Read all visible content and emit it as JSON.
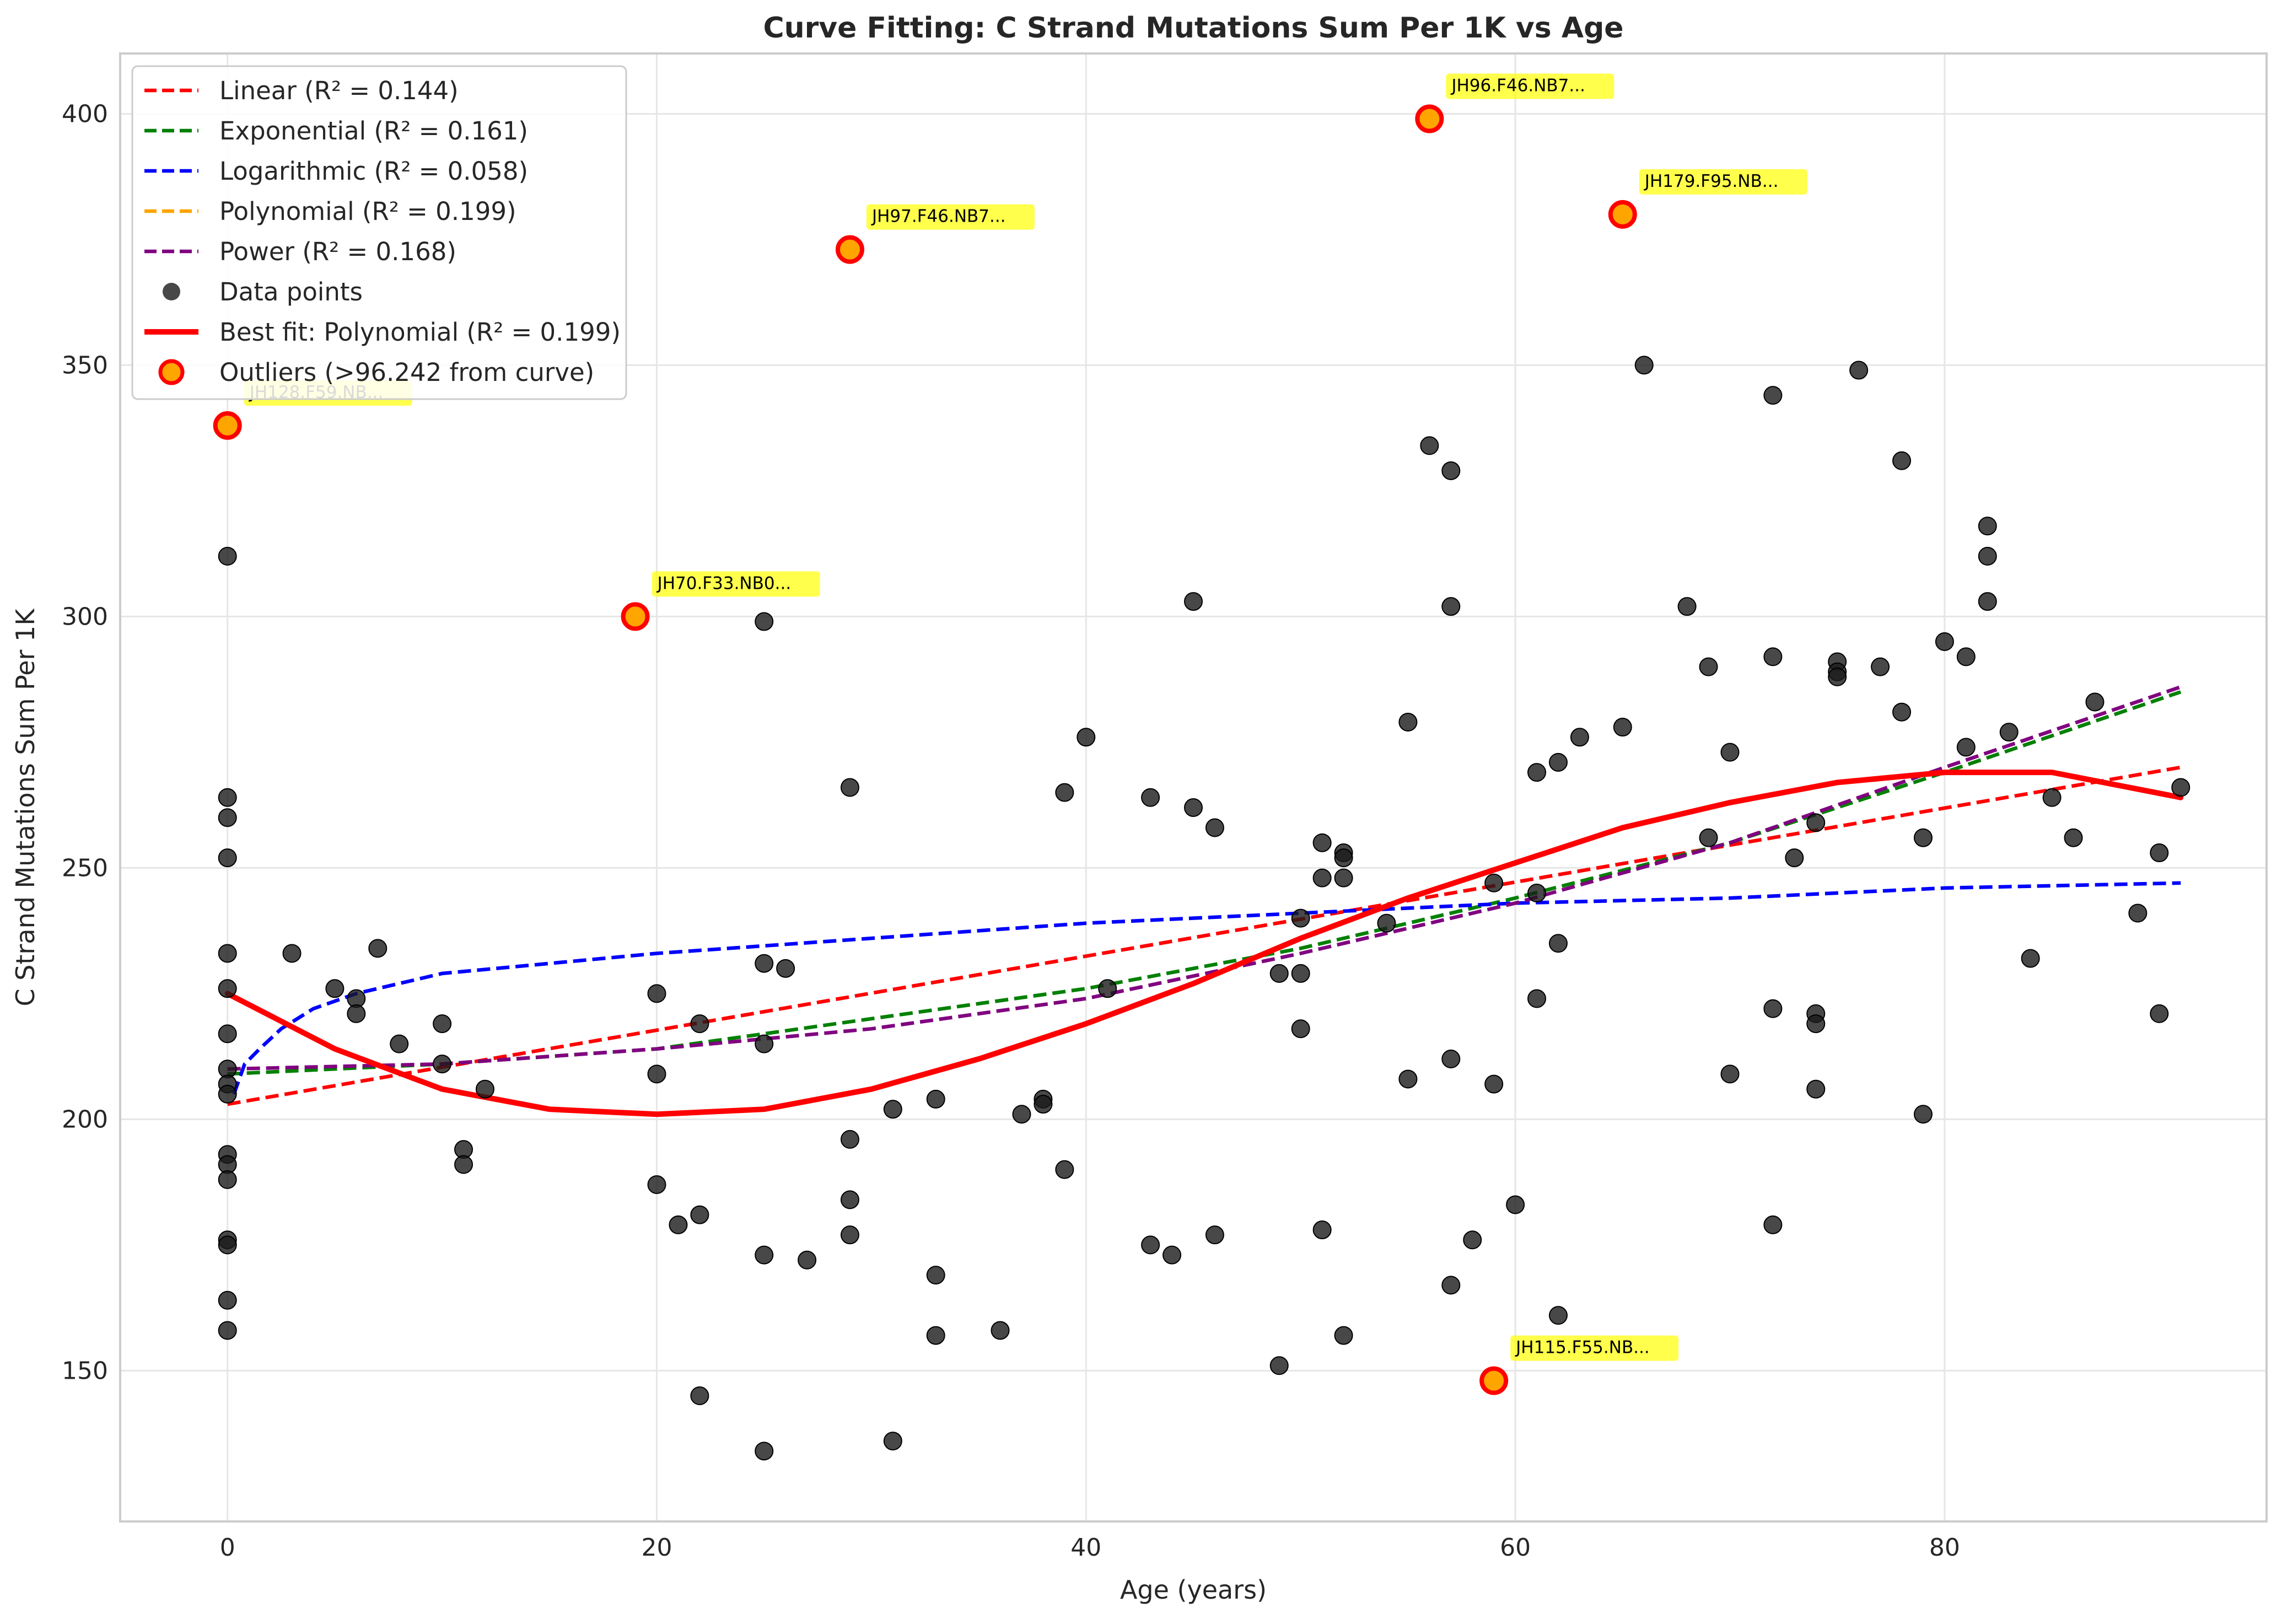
{
  "chart_data": {
    "type": "scatter",
    "title": "Curve Fitting: C Strand Mutations Sum Per 1K vs Age",
    "xlabel": "Age (years)",
    "ylabel": "C Strand Mutations Sum Per 1K",
    "xlim": [
      -5,
      95
    ],
    "ylim": [
      120,
      412
    ],
    "xticks": [
      0,
      20,
      40,
      60,
      80
    ],
    "yticks": [
      150,
      200,
      250,
      300,
      350,
      400
    ],
    "grid": true,
    "legend_position": "upper-left",
    "fits": [
      {
        "name": "Linear (R² = 0.144)",
        "color": "#ff0000",
        "style": "dashed",
        "points": [
          [
            0,
            203
          ],
          [
            91,
            270
          ]
        ]
      },
      {
        "name": "Exponential (R² = 0.161)",
        "color": "#008000",
        "style": "dashed",
        "points": [
          [
            0,
            209
          ],
          [
            10,
            211
          ],
          [
            20,
            214
          ],
          [
            30,
            220
          ],
          [
            40,
            226
          ],
          [
            50,
            234
          ],
          [
            60,
            244
          ],
          [
            70,
            255
          ],
          [
            80,
            269
          ],
          [
            91,
            285
          ]
        ]
      },
      {
        "name": "Logarithmic (R² = 0.058)",
        "color": "#0000ff",
        "style": "dashed",
        "points": [
          [
            0.3,
            205
          ],
          [
            0.8,
            211
          ],
          [
            1.5,
            214
          ],
          [
            2.5,
            218
          ],
          [
            4,
            222
          ],
          [
            6,
            225
          ],
          [
            10,
            229
          ],
          [
            15,
            231
          ],
          [
            20,
            233
          ],
          [
            30,
            236
          ],
          [
            40,
            239
          ],
          [
            50,
            241
          ],
          [
            60,
            243
          ],
          [
            70,
            244
          ],
          [
            80,
            246
          ],
          [
            91,
            247
          ]
        ]
      },
      {
        "name": "Polynomial (R² = 0.199)",
        "color": "#ffa500",
        "style": "dashed",
        "points": [
          [
            0,
            225
          ],
          [
            5,
            214
          ],
          [
            10,
            206
          ],
          [
            15,
            202
          ],
          [
            20,
            201
          ],
          [
            25,
            202
          ],
          [
            30,
            206
          ],
          [
            35,
            212
          ],
          [
            40,
            219
          ],
          [
            45,
            227
          ],
          [
            50,
            236
          ],
          [
            55,
            244
          ],
          [
            60,
            251
          ],
          [
            65,
            258
          ],
          [
            70,
            263
          ],
          [
            75,
            267
          ],
          [
            80,
            269
          ],
          [
            85,
            269
          ],
          [
            91,
            264
          ]
        ]
      },
      {
        "name": "Power (R² = 0.168)",
        "color": "#800080",
        "style": "dashed",
        "points": [
          [
            0,
            210
          ],
          [
            10,
            211
          ],
          [
            20,
            214
          ],
          [
            30,
            218
          ],
          [
            40,
            224
          ],
          [
            50,
            233
          ],
          [
            60,
            243
          ],
          [
            70,
            255
          ],
          [
            80,
            270
          ],
          [
            91,
            286
          ]
        ]
      },
      {
        "name": "Best fit: Polynomial (R² = 0.199)",
        "color": "#ff0000",
        "style": "solid",
        "points": [
          [
            0,
            225
          ],
          [
            5,
            214
          ],
          [
            10,
            206
          ],
          [
            15,
            202
          ],
          [
            20,
            201
          ],
          [
            25,
            202
          ],
          [
            30,
            206
          ],
          [
            35,
            212
          ],
          [
            40,
            219
          ],
          [
            45,
            227
          ],
          [
            50,
            236
          ],
          [
            55,
            244
          ],
          [
            60,
            251
          ],
          [
            65,
            258
          ],
          [
            70,
            263
          ],
          [
            75,
            267
          ],
          [
            80,
            269
          ],
          [
            85,
            269
          ],
          [
            91,
            264
          ]
        ]
      }
    ],
    "data_points_label": "Data points",
    "outliers_label": "Outliers (>96.242 from curve)",
    "points": [
      [
        0,
        312
      ],
      [
        0,
        264
      ],
      [
        0,
        260
      ],
      [
        0,
        252
      ],
      [
        0,
        233
      ],
      [
        0,
        226
      ],
      [
        0,
        217
      ],
      [
        0,
        210
      ],
      [
        0,
        207
      ],
      [
        0,
        205
      ],
      [
        0,
        193
      ],
      [
        0,
        191
      ],
      [
        0,
        188
      ],
      [
        0,
        176
      ],
      [
        0,
        175
      ],
      [
        0,
        164
      ],
      [
        0,
        158
      ],
      [
        3,
        233
      ],
      [
        5,
        226
      ],
      [
        6,
        224
      ],
      [
        6,
        221
      ],
      [
        7,
        234
      ],
      [
        8,
        215
      ],
      [
        10,
        219
      ],
      [
        10,
        211
      ],
      [
        11,
        194
      ],
      [
        11,
        191
      ],
      [
        12,
        206
      ],
      [
        20,
        225
      ],
      [
        20,
        209
      ],
      [
        20,
        187
      ],
      [
        21,
        179
      ],
      [
        22,
        219
      ],
      [
        22,
        181
      ],
      [
        22,
        145
      ],
      [
        25,
        299
      ],
      [
        25,
        231
      ],
      [
        25,
        215
      ],
      [
        25,
        173
      ],
      [
        25,
        134
      ],
      [
        26,
        230
      ],
      [
        27,
        172
      ],
      [
        29,
        266
      ],
      [
        29,
        196
      ],
      [
        29,
        184
      ],
      [
        29,
        177
      ],
      [
        31,
        202
      ],
      [
        31,
        136
      ],
      [
        33,
        204
      ],
      [
        33,
        169
      ],
      [
        33,
        157
      ],
      [
        36,
        158
      ],
      [
        37,
        201
      ],
      [
        38,
        204
      ],
      [
        38,
        203
      ],
      [
        39,
        265
      ],
      [
        39,
        190
      ],
      [
        40,
        276
      ],
      [
        41,
        226
      ],
      [
        43,
        264
      ],
      [
        43,
        175
      ],
      [
        44,
        173
      ],
      [
        45,
        303
      ],
      [
        45,
        262
      ],
      [
        46,
        258
      ],
      [
        46,
        177
      ],
      [
        49,
        229
      ],
      [
        49,
        151
      ],
      [
        50,
        240
      ],
      [
        50,
        229
      ],
      [
        50,
        218
      ],
      [
        51,
        255
      ],
      [
        51,
        248
      ],
      [
        51,
        178
      ],
      [
        52,
        253
      ],
      [
        52,
        252
      ],
      [
        52,
        248
      ],
      [
        52,
        157
      ],
      [
        54,
        239
      ],
      [
        55,
        279
      ],
      [
        55,
        208
      ],
      [
        56,
        334
      ],
      [
        57,
        329
      ],
      [
        57,
        302
      ],
      [
        57,
        212
      ],
      [
        57,
        167
      ],
      [
        58,
        176
      ],
      [
        59,
        247
      ],
      [
        59,
        207
      ],
      [
        60,
        183
      ],
      [
        61,
        269
      ],
      [
        61,
        245
      ],
      [
        61,
        224
      ],
      [
        62,
        271
      ],
      [
        62,
        235
      ],
      [
        62,
        161
      ],
      [
        63,
        276
      ],
      [
        65,
        278
      ],
      [
        66,
        350
      ],
      [
        68,
        302
      ],
      [
        69,
        290
      ],
      [
        69,
        256
      ],
      [
        70,
        273
      ],
      [
        70,
        209
      ],
      [
        72,
        344
      ],
      [
        72,
        292
      ],
      [
        72,
        222
      ],
      [
        72,
        179
      ],
      [
        73,
        252
      ],
      [
        74,
        259
      ],
      [
        74,
        221
      ],
      [
        74,
        219
      ],
      [
        74,
        206
      ],
      [
        75,
        291
      ],
      [
        75,
        289
      ],
      [
        75,
        288
      ],
      [
        76,
        349
      ],
      [
        77,
        290
      ],
      [
        78,
        331
      ],
      [
        78,
        281
      ],
      [
        79,
        256
      ],
      [
        79,
        201
      ],
      [
        80,
        295
      ],
      [
        81,
        292
      ],
      [
        81,
        274
      ],
      [
        82,
        318
      ],
      [
        82,
        312
      ],
      [
        82,
        303
      ],
      [
        83,
        277
      ],
      [
        84,
        232
      ],
      [
        85,
        264
      ],
      [
        86,
        256
      ],
      [
        87,
        283
      ],
      [
        89,
        241
      ],
      [
        90,
        253
      ],
      [
        90,
        221
      ],
      [
        91,
        266
      ]
    ],
    "outliers": [
      {
        "x": 0,
        "y": 338,
        "label": "JH128.F59.NB..."
      },
      {
        "x": 19,
        "y": 300,
        "label": "JH70.F33.NB0..."
      },
      {
        "x": 29,
        "y": 373,
        "label": "JH97.F46.NB7..."
      },
      {
        "x": 56,
        "y": 399,
        "label": "JH96.F46.NB7..."
      },
      {
        "x": 65,
        "y": 380,
        "label": "JH179.F95.NB..."
      },
      {
        "x": 59,
        "y": 148,
        "label": "JH115.F55.NB..."
      }
    ]
  }
}
